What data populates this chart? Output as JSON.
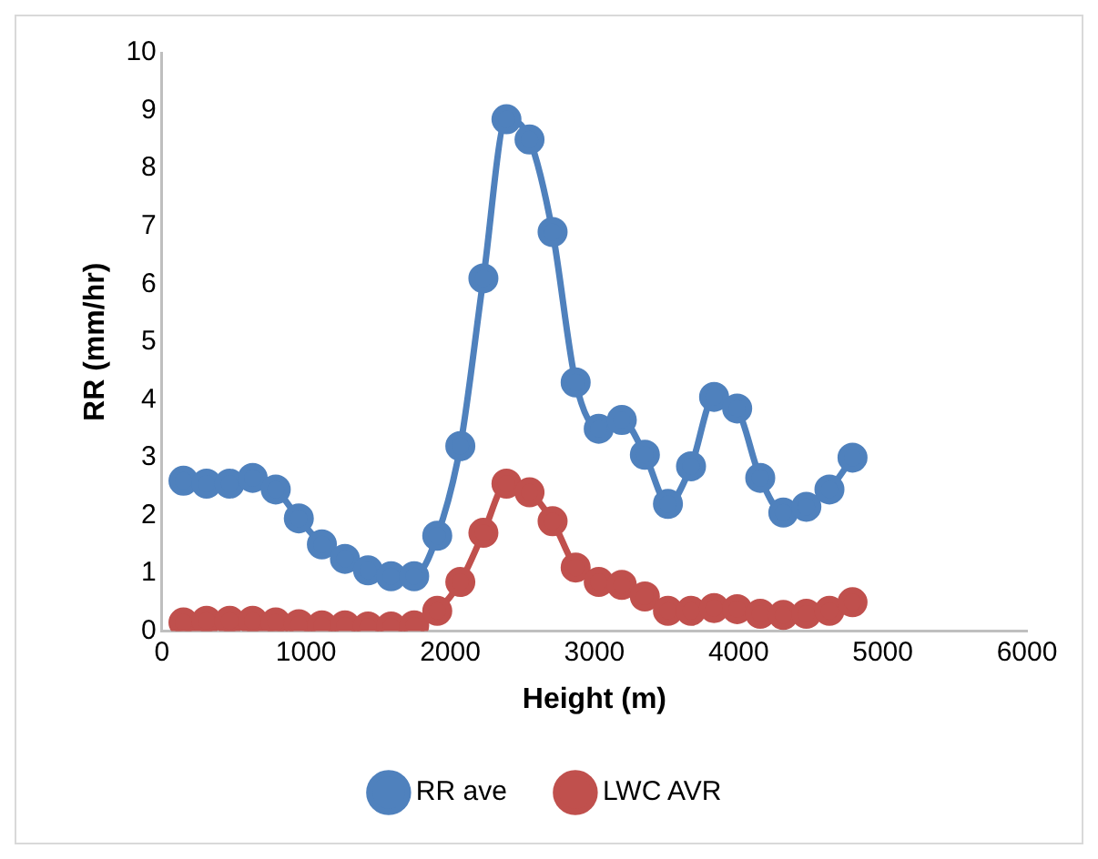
{
  "chart_data": {
    "type": "line",
    "xlabel": "Height (m)",
    "ylabel": "RR (mm/hr)",
    "x": [
      150,
      310,
      470,
      630,
      790,
      950,
      1110,
      1270,
      1430,
      1590,
      1750,
      1910,
      2070,
      2230,
      2390,
      2550,
      2710,
      2870,
      3030,
      3190,
      3350,
      3510,
      3670,
      3830,
      3990,
      4150,
      4310,
      4470,
      4630,
      4790
    ],
    "series": [
      {
        "name": "RR ave",
        "color": "#4f81bd",
        "values": [
          2.6,
          2.55,
          2.55,
          2.65,
          2.45,
          1.95,
          1.5,
          1.25,
          1.05,
          0.95,
          0.95,
          1.65,
          3.2,
          6.1,
          8.85,
          8.5,
          6.9,
          4.3,
          3.5,
          3.65,
          3.05,
          2.2,
          2.85,
          4.05,
          3.85,
          2.65,
          2.05,
          2.15,
          2.45,
          3.0
        ]
      },
      {
        "name": "LWC AVR",
        "color": "#c0504d",
        "values": [
          0.15,
          0.18,
          0.18,
          0.18,
          0.15,
          0.12,
          0.1,
          0.1,
          0.08,
          0.08,
          0.1,
          0.35,
          0.85,
          1.7,
          2.55,
          2.4,
          1.9,
          1.1,
          0.85,
          0.8,
          0.6,
          0.35,
          0.35,
          0.4,
          0.38,
          0.3,
          0.28,
          0.3,
          0.35,
          0.5
        ]
      }
    ],
    "xlim": [
      0,
      6000
    ],
    "xticks": [
      0,
      1000,
      2000,
      3000,
      4000,
      5000,
      6000
    ],
    "ylim": [
      0,
      10
    ],
    "yticks": [
      0,
      1,
      2,
      3,
      4,
      5,
      6,
      7,
      8,
      9,
      10
    ],
    "grid": false,
    "legend": "bottom",
    "marker": "circle",
    "line_style": "solid"
  }
}
